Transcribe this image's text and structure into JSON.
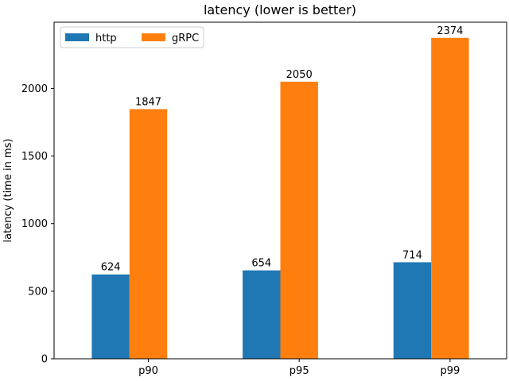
{
  "chart_data": {
    "type": "bar",
    "title": "latency (lower is better)",
    "xlabel": "",
    "ylabel": "latency (time in ms)",
    "categories": [
      "p90",
      "p95",
      "p99"
    ],
    "series": [
      {
        "name": "http",
        "values": [
          624,
          654,
          714
        ],
        "color": "#1f77b4"
      },
      {
        "name": "gRPC",
        "values": [
          1847,
          2050,
          2374
        ],
        "color": "#ff7f0e"
      }
    ],
    "ylim": [
      0,
      2490
    ],
    "yticks": [
      0,
      500,
      1000,
      1500,
      2000
    ],
    "legend": "top-left",
    "grid": false
  }
}
